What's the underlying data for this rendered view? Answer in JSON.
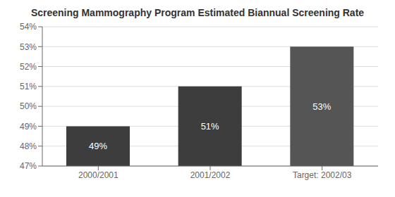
{
  "chart_data": {
    "type": "bar",
    "title": "Screening Mammography Program Estimated Biannual Screening Rate",
    "categories": [
      "2000/2001",
      "2001/2002",
      "Target: 2002/03"
    ],
    "values": [
      49,
      51,
      53
    ],
    "value_labels": [
      "49%",
      "51%",
      "53%"
    ],
    "data_labels": true,
    "colors": [
      "#3d3d3d",
      "#3d3d3d",
      "#555555"
    ],
    "ylim": [
      47,
      54
    ],
    "yticks": [
      {
        "value": 47,
        "label": "47%"
      },
      {
        "value": 48,
        "label": "48%"
      },
      {
        "value": 49,
        "label": "49%"
      },
      {
        "value": 50,
        "label": "50%"
      },
      {
        "value": 51,
        "label": "51%"
      },
      {
        "value": 52,
        "label": "52%"
      },
      {
        "value": 53,
        "label": "53%"
      },
      {
        "value": 54,
        "label": "54%"
      }
    ],
    "grid": true
  }
}
